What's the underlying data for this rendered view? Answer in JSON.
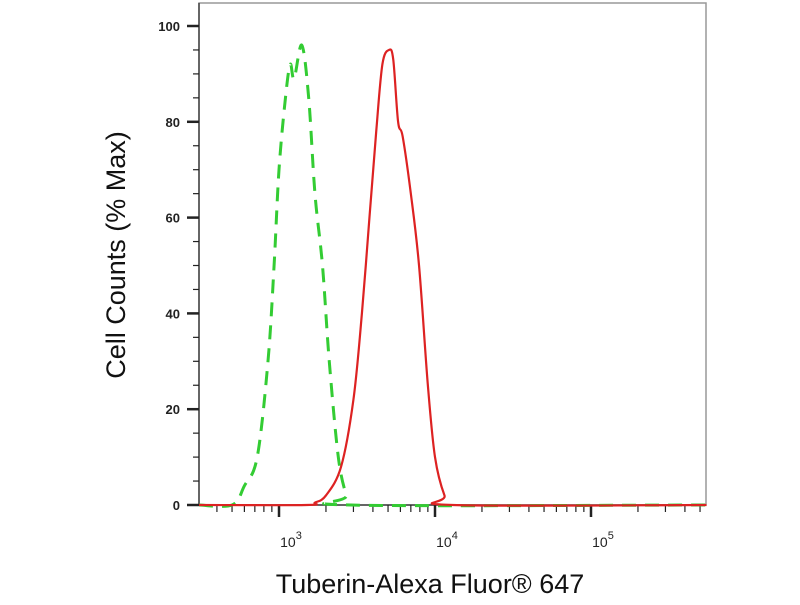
{
  "chart_data": {
    "type": "line",
    "title": "",
    "xlabel": "Tuberin-Alexa Fluor® 647",
    "ylabel": "Cell Counts (% Max)",
    "xscale": "log",
    "xlim": [
      307,
      550000
    ],
    "ylim": [
      0,
      100
    ],
    "grid": false,
    "x_ticks": [
      {
        "value": 1000,
        "base": "10",
        "exp": "3"
      },
      {
        "value": 10000,
        "base": "10",
        "exp": "4"
      },
      {
        "value": 100000,
        "base": "10",
        "exp": "5"
      }
    ],
    "y_ticks": [
      0,
      20,
      40,
      60,
      80,
      100
    ],
    "series": [
      {
        "color": "#33cc33",
        "style": "dashed",
        "points": [
          [
            307,
            0
          ],
          [
            500,
            0
          ],
          [
            600,
            4
          ],
          [
            725,
            10
          ],
          [
            850,
            30
          ],
          [
            930,
            50
          ],
          [
            1000,
            70
          ],
          [
            1100,
            85
          ],
          [
            1180,
            92
          ],
          [
            1250,
            89
          ],
          [
            1400,
            96
          ],
          [
            1550,
            85
          ],
          [
            1700,
            65
          ],
          [
            1900,
            50
          ],
          [
            2100,
            30
          ],
          [
            2400,
            10
          ],
          [
            2700,
            2
          ],
          [
            2900,
            0
          ],
          [
            550000,
            0
          ]
        ]
      },
      {
        "color": "#dd2222",
        "style": "solid",
        "points": [
          [
            307,
            0
          ],
          [
            1500,
            0
          ],
          [
            1700,
            0.5
          ],
          [
            2000,
            2
          ],
          [
            2500,
            8
          ],
          [
            3000,
            22
          ],
          [
            3400,
            40
          ],
          [
            3800,
            60
          ],
          [
            4200,
            78
          ],
          [
            4600,
            92
          ],
          [
            5070,
            95
          ],
          [
            5400,
            93
          ],
          [
            5800,
            80
          ],
          [
            6200,
            77
          ],
          [
            7000,
            65
          ],
          [
            7900,
            50
          ],
          [
            9000,
            25
          ],
          [
            10000,
            10
          ],
          [
            11500,
            2
          ],
          [
            13000,
            0
          ],
          [
            550000,
            0
          ]
        ]
      }
    ]
  }
}
